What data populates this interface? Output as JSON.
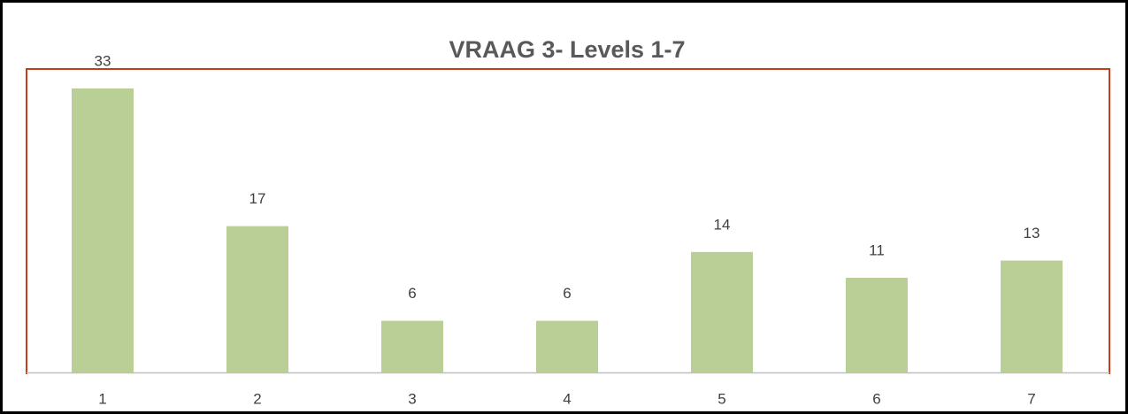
{
  "chart_data": {
    "type": "bar",
    "title": "VRAAG 3- Levels 1-7",
    "categories": [
      "1",
      "2",
      "3",
      "4",
      "5",
      "6",
      "7"
    ],
    "values": [
      33,
      17,
      6,
      6,
      14,
      11,
      13
    ],
    "color": "#b9cf96"
  }
}
